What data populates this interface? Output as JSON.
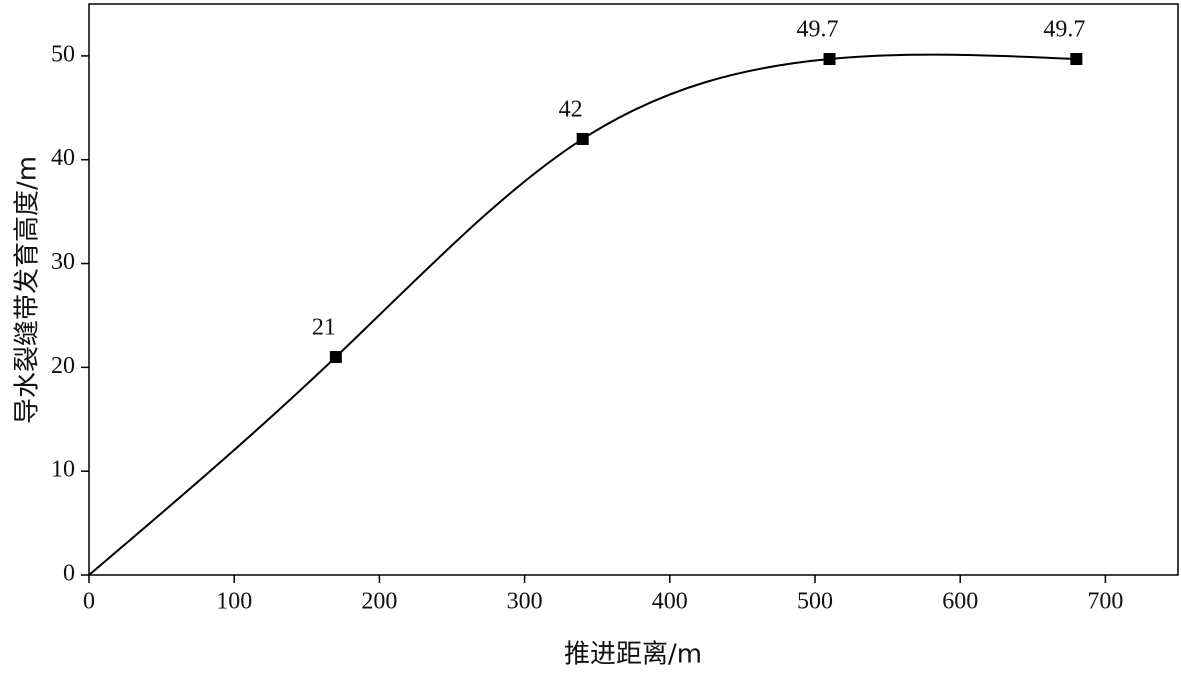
{
  "chart_data": {
    "type": "line",
    "x_label": "推进距离/m",
    "y_label": "导水裂缝带发育高度/m",
    "x": [
      0,
      170,
      340,
      510,
      680
    ],
    "series": [
      {
        "color": "#000000",
        "values": [
          0,
          21,
          42,
          49.7,
          49.7
        ],
        "value_labels": [
          null,
          "21",
          "42",
          "49.7",
          "49.7"
        ]
      }
    ],
    "xlim": [
      0,
      750
    ],
    "xticks": [
      0,
      100,
      200,
      300,
      400,
      500,
      600,
      700
    ],
    "ylim": [
      0,
      55
    ],
    "yticks": [
      0,
      10,
      20,
      30,
      40,
      50
    ],
    "smooth": true,
    "marker": "square"
  }
}
